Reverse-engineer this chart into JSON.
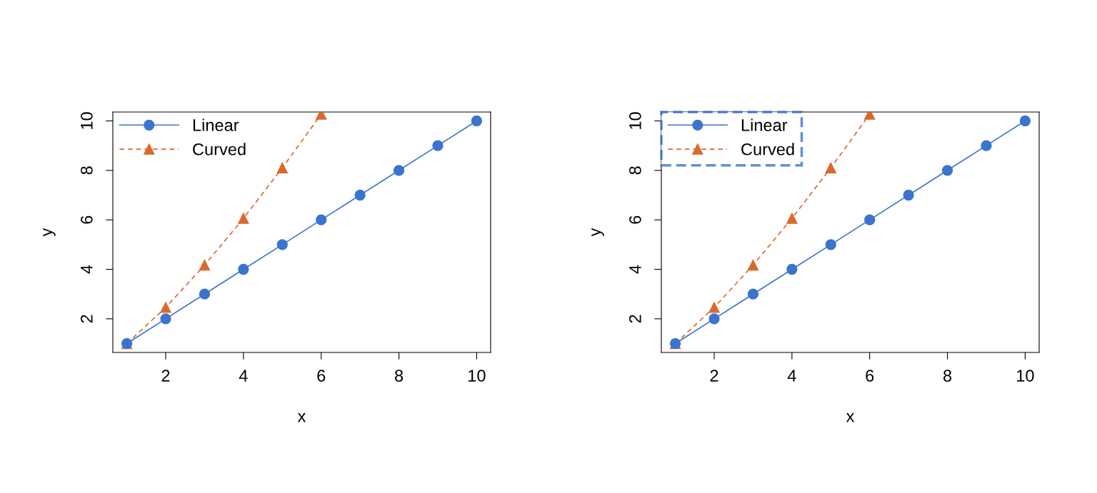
{
  "chart_data": [
    {
      "type": "line",
      "xlabel": "x",
      "ylabel": "y",
      "xlim": [
        0.64,
        10.36
      ],
      "ylim": [
        0.64,
        10.36
      ],
      "xticks": [
        2,
        4,
        6,
        8,
        10
      ],
      "yticks": [
        2,
        4,
        6,
        8,
        10
      ],
      "grid": false,
      "legend": "top left",
      "series": [
        {
          "name": "Linear",
          "color": "#3a74cf",
          "marker": "circle",
          "line_style": "solid",
          "x": [
            1,
            2,
            3,
            4,
            5,
            6,
            7,
            8,
            9,
            10
          ],
          "values": [
            1,
            2,
            3,
            4,
            5,
            6,
            7,
            8,
            9,
            10
          ]
        },
        {
          "name": "Curved",
          "color": "#d9692e",
          "marker": "triangle",
          "line_style": "dashed",
          "x": [
            1,
            2,
            3,
            4,
            5,
            6
          ],
          "values": [
            1,
            2.46,
            4.17,
            6.06,
            8.1,
            10.27
          ]
        }
      ]
    },
    {
      "type": "line",
      "xlabel": "x",
      "ylabel": "y",
      "xlim": [
        0.64,
        10.36
      ],
      "ylim": [
        0.64,
        10.36
      ],
      "xticks": [
        2,
        4,
        6,
        8,
        10
      ],
      "yticks": [
        2,
        4,
        6,
        8,
        10
      ],
      "grid": false,
      "legend": "top left",
      "series": [
        {
          "name": "Linear",
          "color": "#3a74cf",
          "marker": "circle",
          "line_style": "solid",
          "x": [
            1,
            2,
            3,
            4,
            5,
            6,
            7,
            8,
            9,
            10
          ],
          "values": [
            1,
            2,
            3,
            4,
            5,
            6,
            7,
            8,
            9,
            10
          ]
        },
        {
          "name": "Curved",
          "color": "#d9692e",
          "marker": "triangle",
          "line_style": "dashed",
          "x": [
            1,
            2,
            3,
            4,
            5,
            6
          ],
          "values": [
            1,
            2.46,
            4.17,
            6.06,
            8.1,
            10.27
          ]
        }
      ]
    }
  ]
}
